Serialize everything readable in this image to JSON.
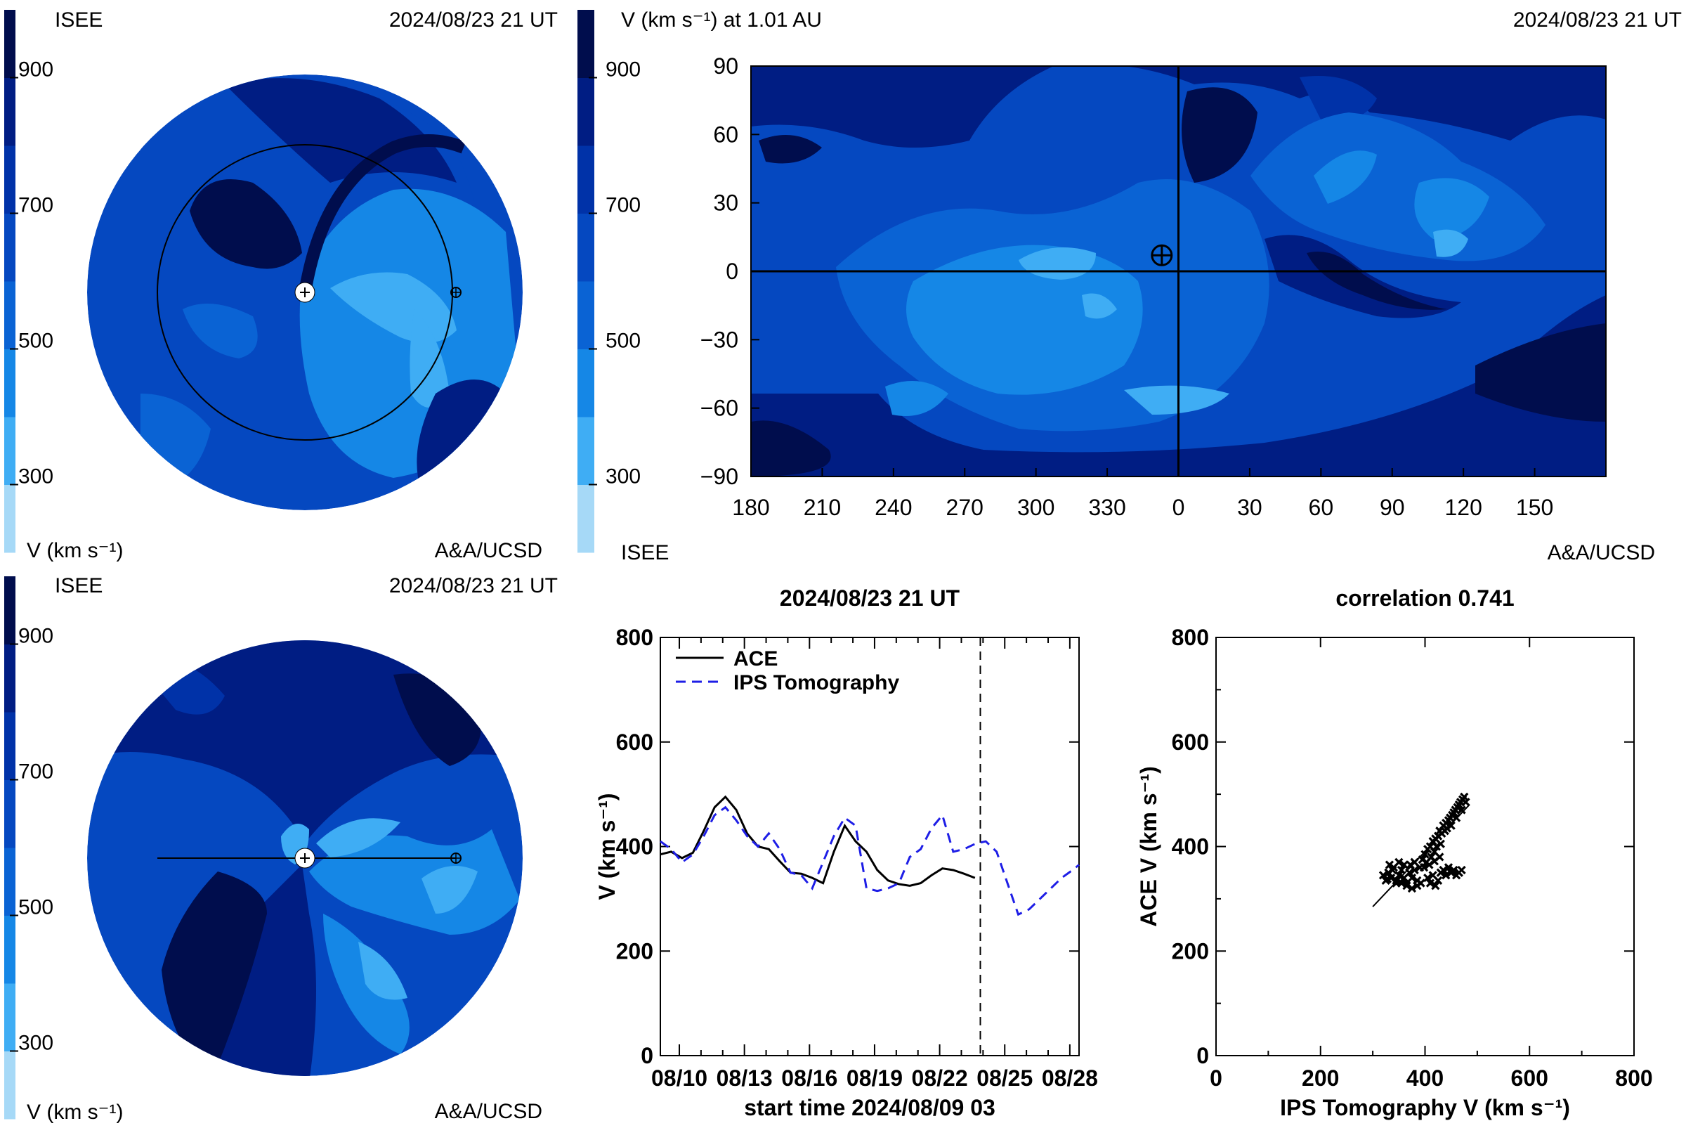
{
  "colors": {
    "bands": [
      "#a6d9f7",
      "#3fadf4",
      "#1587e6",
      "#0a63d4",
      "#0548c0",
      "#0032a8",
      "#001d83",
      "#000d4d"
    ],
    "ink": "#000000",
    "series_dashed": "#1e1ee6"
  },
  "colorbar": {
    "ticks": [
      "900",
      "700",
      "500",
      "300"
    ],
    "unit_label": "V (km s⁻¹)"
  },
  "panels": {
    "top_left": {
      "org": "ISEE",
      "timestamp": "2024/08/23 21 UT",
      "unit_label": "V (km s⁻¹)",
      "credit": "A&A/UCSD"
    },
    "bottom_left": {
      "org": "ISEE",
      "timestamp": "2024/08/23 21 UT",
      "unit_label": "V (km s⁻¹)",
      "credit": "A&A/UCSD"
    },
    "top_right": {
      "title": "V (km s⁻¹) at 1.01 AU",
      "timestamp": "2024/08/23 21 UT",
      "org": "ISEE",
      "credit": "A&A/UCSD"
    }
  },
  "chart_data": [
    {
      "type": "heatmap",
      "panel": "synoptic-map",
      "title": "V (km s⁻¹) at 1.01 AU",
      "x_tick_labels": [
        "180",
        "210",
        "240",
        "270",
        "300",
        "330",
        "0",
        "30",
        "60",
        "90",
        "120",
        "150"
      ],
      "y_tick_labels": [
        "90",
        "60",
        "30",
        "0",
        "−30",
        "−60",
        "−90"
      ],
      "ylim": [
        -90,
        90
      ],
      "earth_marker": {
        "longitude": 353,
        "latitude": 7
      },
      "colorbar_ticks": [
        900,
        700,
        500,
        300
      ]
    },
    {
      "type": "line",
      "panel": "timeseries",
      "title": "2024/08/23 21 UT",
      "xlabel": "start time 2024/08/09 03",
      "ylabel": "V (km s⁻¹)",
      "x_tick_labels": [
        "08/10",
        "08/13",
        "08/16",
        "08/19",
        "08/22",
        "08/25",
        "08/28"
      ],
      "x_tick_days": [
        0.875,
        3.875,
        6.875,
        9.875,
        12.875,
        15.875,
        18.875
      ],
      "xlim_days": [
        0,
        19.3
      ],
      "ylim": [
        0,
        800
      ],
      "y_ticks": [
        0,
        200,
        400,
        600,
        800
      ],
      "now_marker_day": 14.75,
      "legend_position": "top-left",
      "series": [
        {
          "name": "ACE",
          "style": "solid",
          "x": [
            0,
            0.5,
            1,
            1.5,
            2,
            2.5,
            3,
            3.5,
            4,
            4.5,
            5,
            5.5,
            6,
            6.5,
            7,
            7.5,
            8,
            8.5,
            9,
            9.5,
            10,
            10.5,
            11,
            11.5,
            12,
            12.5,
            13,
            13.5,
            14,
            14.5
          ],
          "y": [
            385,
            390,
            378,
            388,
            430,
            475,
            495,
            470,
            425,
            400,
            395,
            372,
            350,
            348,
            340,
            330,
            390,
            440,
            410,
            390,
            355,
            335,
            328,
            325,
            330,
            345,
            358,
            355,
            348,
            340
          ]
        },
        {
          "name": "IPS Tomography",
          "style": "dashed",
          "x": [
            0,
            0.5,
            1,
            1.5,
            2,
            2.5,
            3,
            3.5,
            4,
            4.5,
            5,
            5.5,
            6,
            6.5,
            7,
            7.5,
            8,
            8.5,
            9,
            9.5,
            10,
            10.5,
            11,
            11.5,
            12,
            12.5,
            13,
            13.5,
            14,
            14.5,
            15,
            15.5,
            16,
            16.5,
            17,
            17.5,
            18,
            18.5,
            19,
            19.3
          ],
          "y": [
            410,
            395,
            370,
            385,
            420,
            460,
            475,
            450,
            420,
            400,
            425,
            395,
            350,
            345,
            320,
            370,
            420,
            455,
            440,
            320,
            315,
            320,
            330,
            380,
            395,
            435,
            460,
            390,
            395,
            405,
            410,
            390,
            330,
            270,
            280,
            300,
            320,
            340,
            355,
            365
          ]
        }
      ]
    },
    {
      "type": "scatter",
      "panel": "correlation",
      "title": "correlation 0.741",
      "xlabel": "IPS Tomography V (km s⁻¹)",
      "ylabel": "ACE V (km s⁻¹)",
      "xlim": [
        0,
        800
      ],
      "ylim": [
        0,
        800
      ],
      "ticks": [
        0,
        200,
        400,
        600,
        800
      ],
      "points": [
        [
          320,
          345
        ],
        [
          325,
          335
        ],
        [
          330,
          350
        ],
        [
          335,
          340
        ],
        [
          340,
          360
        ],
        [
          345,
          330
        ],
        [
          350,
          345
        ],
        [
          355,
          355
        ],
        [
          360,
          340
        ],
        [
          365,
          330
        ],
        [
          370,
          350
        ],
        [
          372,
          365
        ],
        [
          375,
          340
        ],
        [
          380,
          355
        ],
        [
          385,
          335
        ],
        [
          390,
          360
        ],
        [
          395,
          375
        ],
        [
          400,
          385
        ],
        [
          403,
          370
        ],
        [
          405,
          395
        ],
        [
          410,
          400
        ],
        [
          412,
          380
        ],
        [
          415,
          410
        ],
        [
          418,
          390
        ],
        [
          420,
          415
        ],
        [
          422,
          400
        ],
        [
          425,
          420
        ],
        [
          428,
          430
        ],
        [
          430,
          405
        ],
        [
          432,
          425
        ],
        [
          435,
          440
        ],
        [
          438,
          430
        ],
        [
          440,
          445
        ],
        [
          442,
          435
        ],
        [
          445,
          450
        ],
        [
          448,
          455
        ],
        [
          450,
          440
        ],
        [
          452,
          460
        ],
        [
          455,
          465
        ],
        [
          458,
          470
        ],
        [
          460,
          455
        ],
        [
          462,
          475
        ],
        [
          465,
          480
        ],
        [
          468,
          485
        ],
        [
          470,
          470
        ],
        [
          472,
          490
        ],
        [
          475,
          495
        ],
        [
          478,
          485
        ],
        [
          405,
          340
        ],
        [
          410,
          330
        ],
        [
          415,
          345
        ],
        [
          420,
          325
        ],
        [
          425,
          335
        ],
        [
          430,
          350
        ],
        [
          435,
          355
        ],
        [
          440,
          345
        ],
        [
          445,
          360
        ],
        [
          450,
          350
        ],
        [
          455,
          355
        ],
        [
          460,
          345
        ],
        [
          465,
          350
        ],
        [
          470,
          355
        ],
        [
          392,
          330
        ],
        [
          385,
          325
        ],
        [
          375,
          320
        ],
        [
          365,
          325
        ],
        [
          355,
          330
        ],
        [
          345,
          335
        ],
        [
          338,
          355
        ],
        [
          332,
          365
        ],
        [
          328,
          338
        ],
        [
          380,
          370
        ],
        [
          398,
          360
        ],
        [
          408,
          365
        ],
        [
          418,
          372
        ],
        [
          428,
          380
        ],
        [
          360,
          365
        ],
        [
          350,
          370
        ]
      ],
      "fit_line": {
        "x": [
          300,
          485
        ],
        "y": [
          285,
          480
        ]
      }
    }
  ]
}
